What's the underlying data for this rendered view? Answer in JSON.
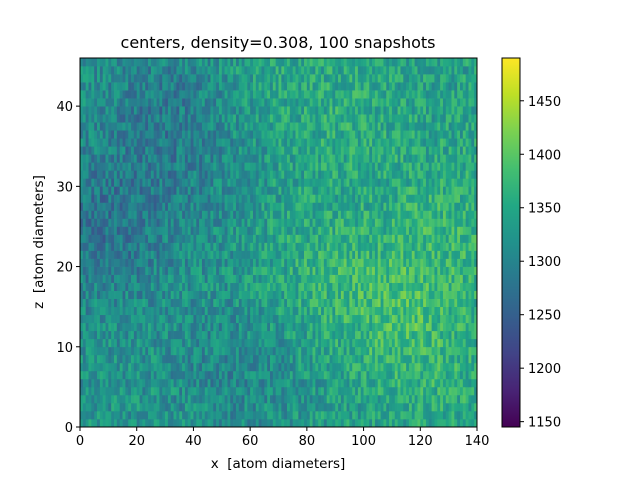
{
  "chart_data": {
    "type": "heatmap",
    "title": "centers, density=0.308, 100 snapshots",
    "xlabel": "x  [atom diameters]",
    "ylabel": "z  [atom diameters]",
    "xlim": [
      0,
      140
    ],
    "ylim": [
      0,
      46
    ],
    "x_ticks": [
      0,
      20,
      40,
      60,
      80,
      100,
      120,
      140
    ],
    "y_ticks": [
      0,
      10,
      20,
      30,
      40
    ],
    "colormap": "viridis",
    "colorbar": {
      "range": [
        1145,
        1490
      ],
      "ticks": [
        1150,
        1200,
        1250,
        1300,
        1350,
        1400,
        1450
      ]
    },
    "value_field": {
      "description_source": "estimated from image",
      "baseline": 1320,
      "noise_amplitude": 45,
      "regions": [
        {
          "x": 10,
          "z": 25,
          "delta": -45
        },
        {
          "x": 30,
          "z": 40,
          "delta": -35
        },
        {
          "x": 55,
          "z": 7,
          "delta": -25
        },
        {
          "x": 45,
          "z": 30,
          "delta": -15
        },
        {
          "x": 82,
          "z": 20,
          "delta": 25
        },
        {
          "x": 95,
          "z": 38,
          "delta": 20
        },
        {
          "x": 110,
          "z": 15,
          "delta": 35
        },
        {
          "x": 130,
          "z": 25,
          "delta": 25
        },
        {
          "x": 125,
          "z": 8,
          "delta": 20
        },
        {
          "x": 68,
          "z": 44,
          "delta": 15
        }
      ]
    }
  }
}
